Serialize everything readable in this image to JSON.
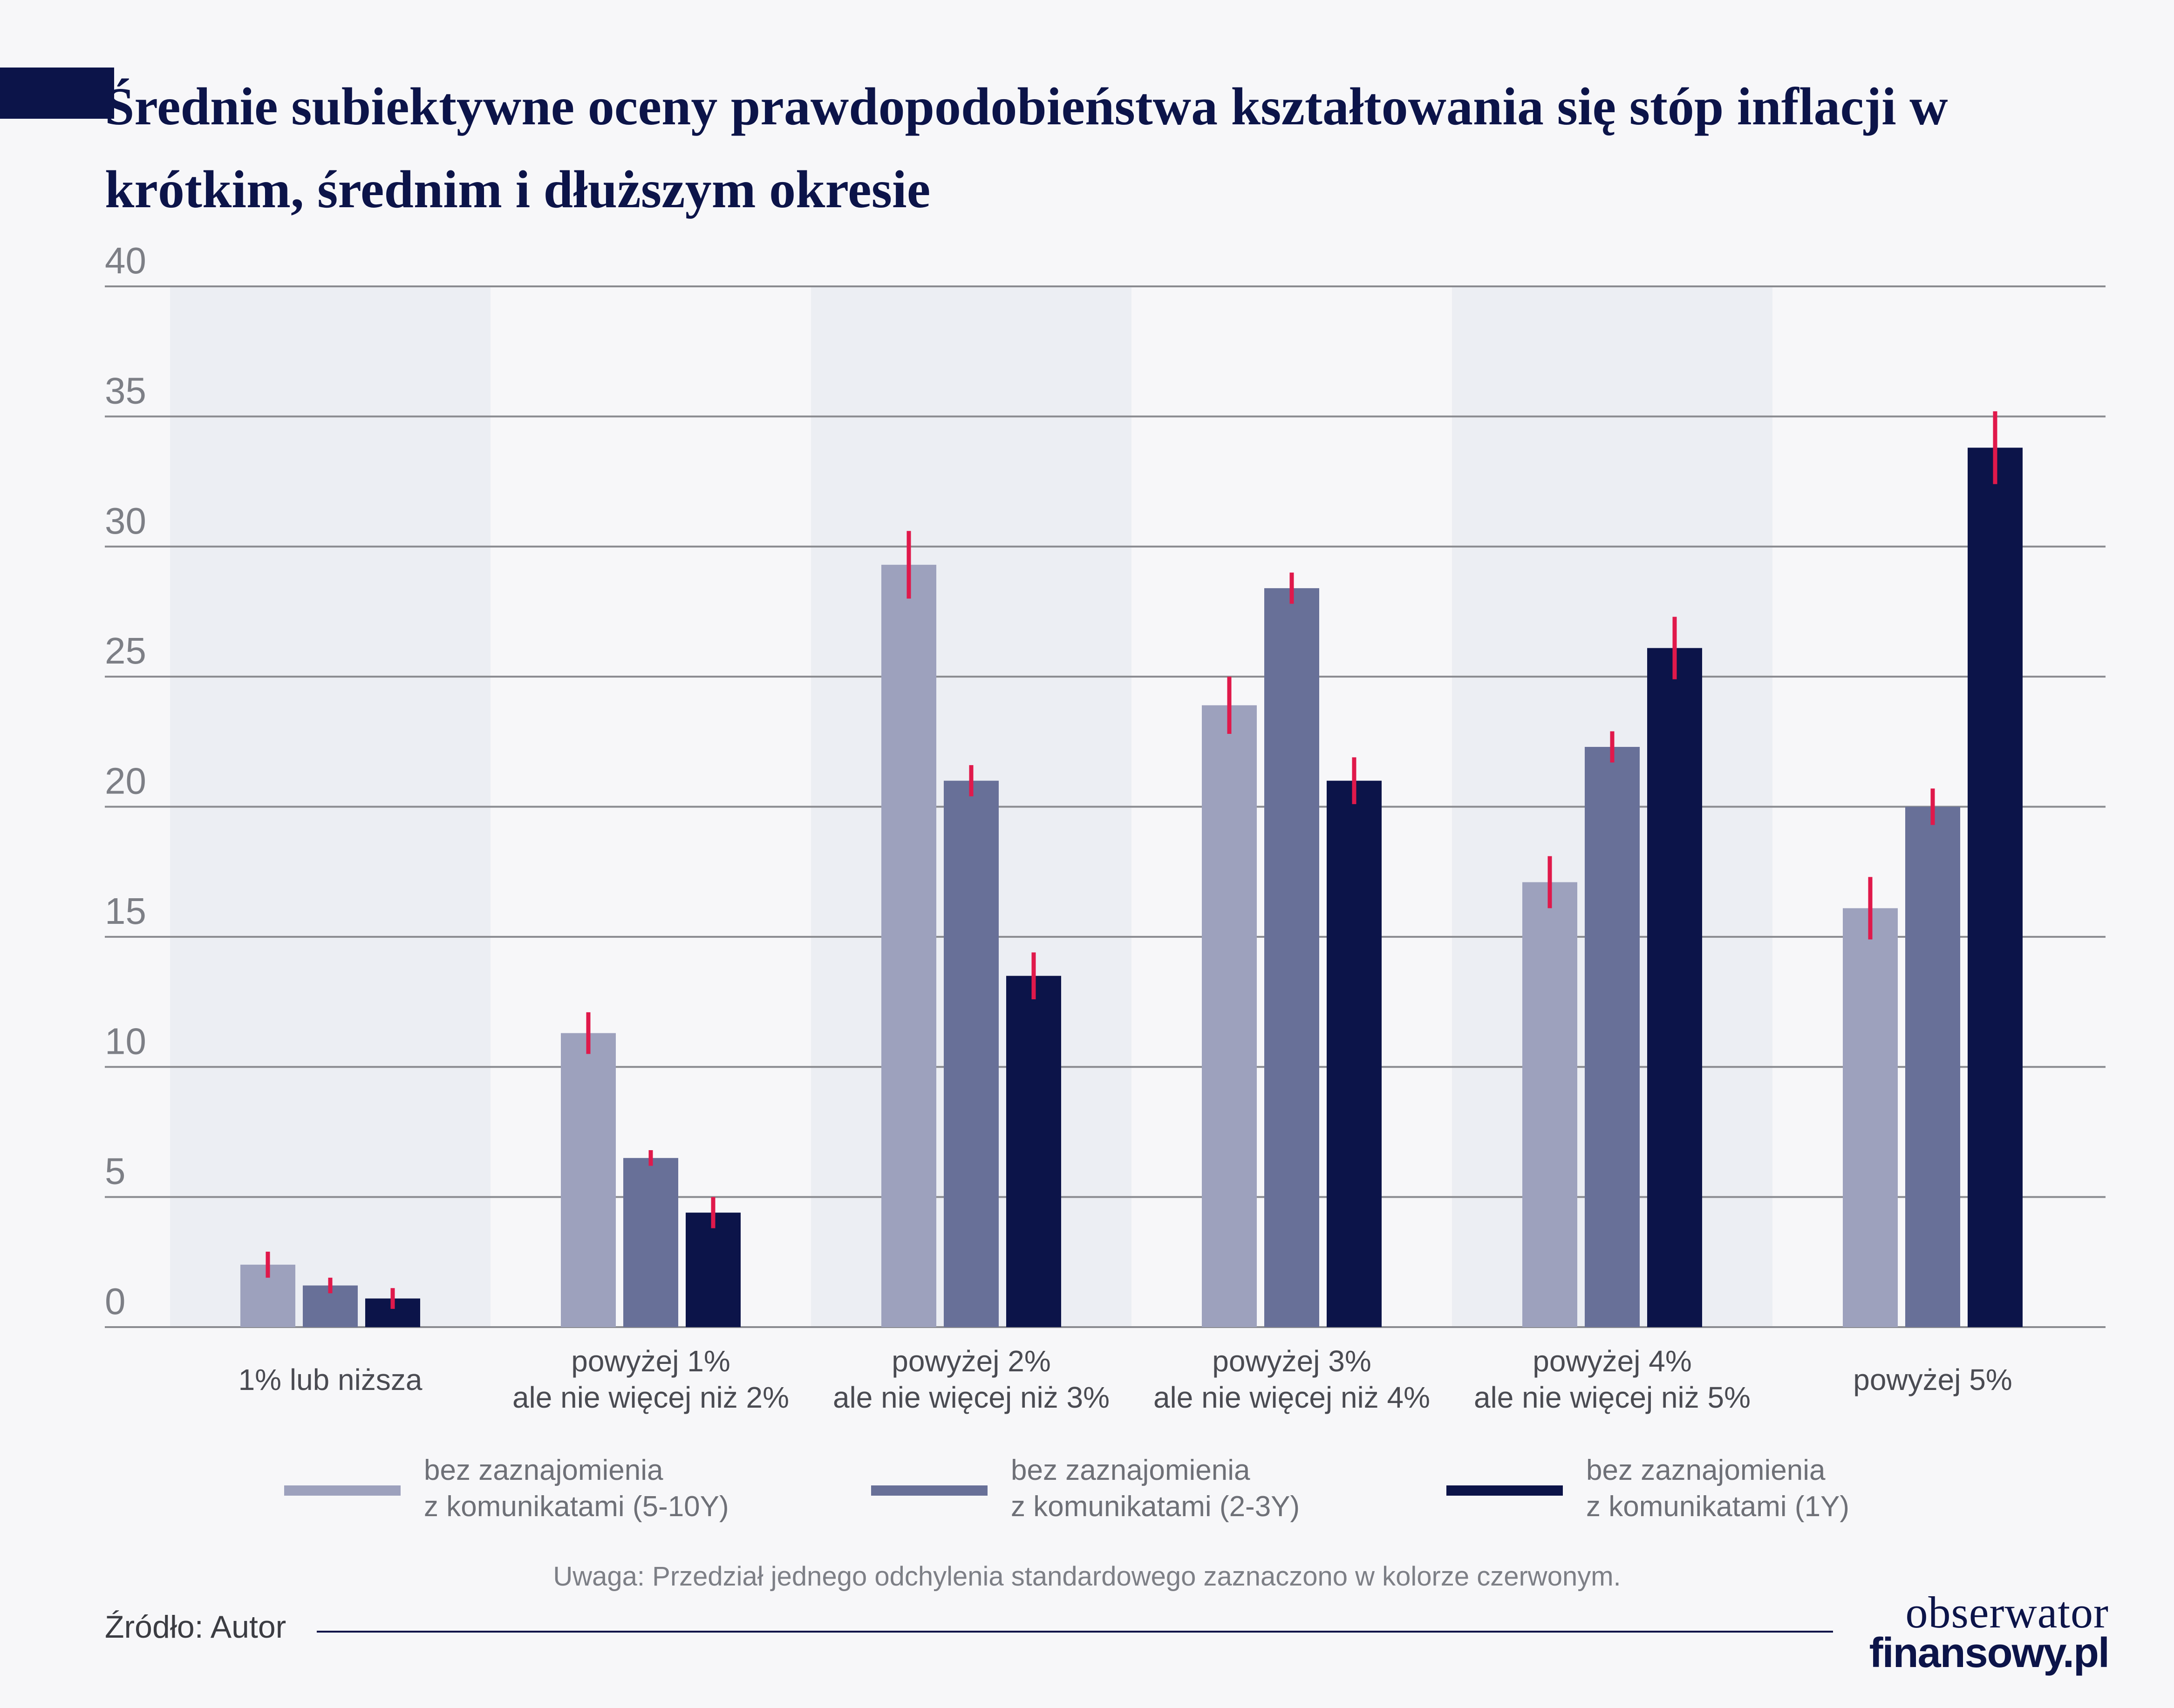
{
  "title": "Średnie subiektywne oceny prawdopodobieństwa kształtowania się stóp inflacji w krótkim, średnim i dłuższym okresie",
  "colors": {
    "background": "#f7f7f9",
    "band": "#eceef3",
    "gridline": "#8a8b90",
    "error_bar": "#e0194b",
    "title": "#0c1449",
    "series": [
      "#9da1bd",
      "#687098",
      "#0c1449"
    ]
  },
  "chart_data": {
    "type": "bar",
    "ylim": [
      0,
      40
    ],
    "yticks": [
      "0",
      "5",
      "10",
      "15",
      "20",
      "25",
      "30",
      "35",
      "40"
    ],
    "grid": true,
    "alternating_bands": true,
    "legend_position": "bottom",
    "categories": [
      [
        "1% lub niższa"
      ],
      [
        "powyżej 1%",
        "ale nie więcej niż 2%"
      ],
      [
        "powyżej 2%",
        "ale nie więcej niż 3%"
      ],
      [
        "powyżej 3%",
        "ale nie więcej niż 4%"
      ],
      [
        "powyżej 4%",
        "ale nie więcej niż 5%"
      ],
      [
        "powyżej 5%"
      ]
    ],
    "series": [
      {
        "name": [
          "bez zaznajomienia",
          "z komunikatami (5-10Y)"
        ],
        "values": [
          2.4,
          11.3,
          29.3,
          23.9,
          17.1,
          16.1
        ],
        "errors": [
          0.5,
          0.8,
          1.3,
          1.1,
          1.0,
          1.2
        ]
      },
      {
        "name": [
          "bez zaznajomienia",
          "z komunikatami (2-3Y)"
        ],
        "values": [
          1.6,
          6.5,
          21.0,
          28.4,
          22.3,
          20.0
        ],
        "errors": [
          0.3,
          0.3,
          0.6,
          0.6,
          0.6,
          0.7
        ]
      },
      {
        "name": [
          "bez zaznajomienia",
          "z komunikatami (1Y)"
        ],
        "values": [
          1.1,
          4.4,
          13.5,
          21.0,
          26.1,
          33.8
        ],
        "errors": [
          0.4,
          0.6,
          0.9,
          0.9,
          1.2,
          1.4
        ]
      }
    ],
    "note": "Uwaga: Przedział jednego odchylenia standardowego zaznaczono w kolorze czerwonym."
  },
  "source": "Źródło: Autor",
  "logo": {
    "line1": "obserwator",
    "line2": "finansowy.pl"
  }
}
